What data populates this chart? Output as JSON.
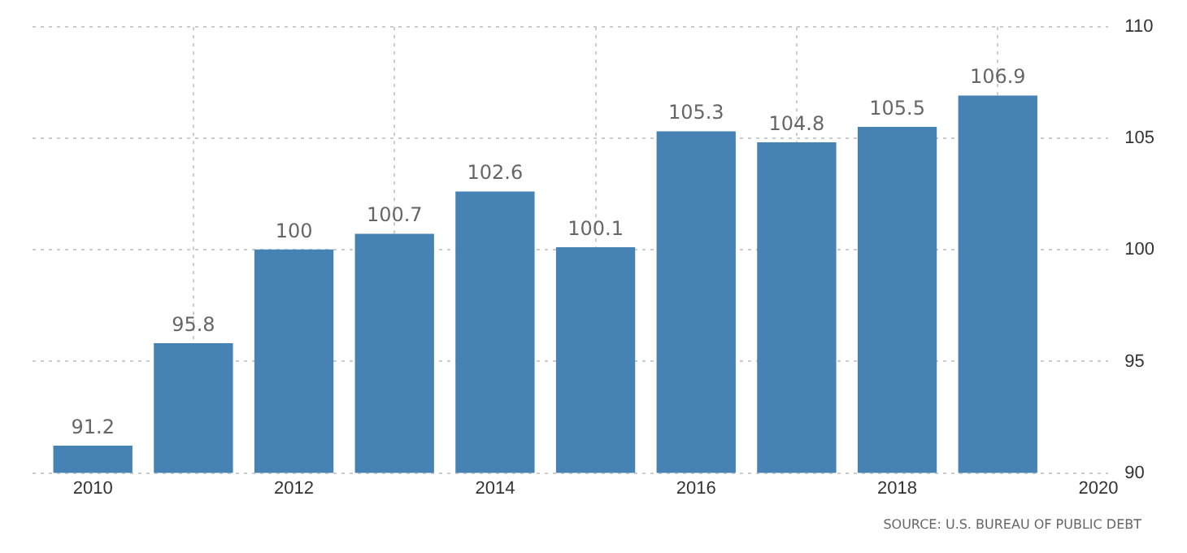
{
  "chart_data": {
    "type": "bar",
    "x": [
      2010,
      2011,
      2012,
      2013,
      2014,
      2015,
      2016,
      2017,
      2018,
      2019
    ],
    "values": [
      91.2,
      95.8,
      100,
      100.7,
      102.6,
      100.1,
      105.3,
      104.8,
      105.5,
      106.9
    ],
    "color": "#4682b4",
    "xlim": [
      2009.4,
      2020.1
    ],
    "xticks": [
      2010,
      2012,
      2014,
      2016,
      2018,
      2020
    ],
    "ylim": [
      90,
      110
    ],
    "yticks": [
      90,
      95,
      100,
      105,
      110
    ],
    "grid": true,
    "data_labels": true,
    "legend": false,
    "annotations": [
      "SOURCE: U.S. BUREAU OF PUBLIC DEBT"
    ]
  }
}
